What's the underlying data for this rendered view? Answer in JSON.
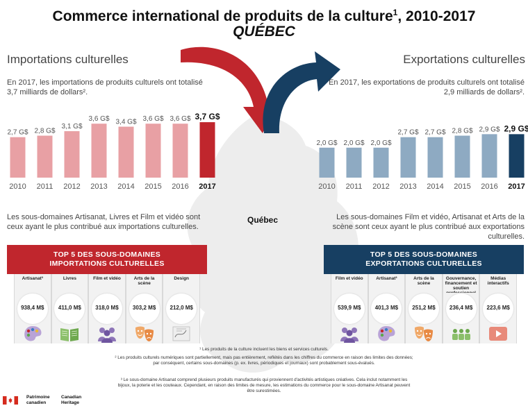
{
  "title": "Commerce international de produits de la culture",
  "title_sup": "1",
  "title_years": ", 2010-2017",
  "subtitle": "QUÉBEC",
  "imports": {
    "heading": "Importations culturelles",
    "intro": "En 2017, les importations de produits culturels ont totalisé 3,7 milliards de dollars².",
    "summary": "Les sous-domaines Artisanat, Livres et Film et vidéo sont ceux ayant le plus contribué aux importations culturelles.",
    "top5_title_line1": "TOP 5 DES SOUS-DOMAINES",
    "top5_title_line2": "IMPORTATIONS CULTURELLES",
    "top5": [
      {
        "label": "Artisanat³",
        "value": "938,4 M$",
        "icon": "palette-icon"
      },
      {
        "label": "Livres",
        "value": "411,0 M$",
        "icon": "book-icon"
      },
      {
        "label": "Film et vidéo",
        "value": "318,0 M$",
        "icon": "audience-icon"
      },
      {
        "label": "Arts de la scène",
        "value": "303,2 M$",
        "icon": "theatre-masks-icon"
      },
      {
        "label": "Design",
        "value": "212,0 M$",
        "icon": "design-sketch-icon"
      }
    ]
  },
  "exports": {
    "heading": "Exportations culturelles",
    "intro": "En 2017, les exportations de produits culturels ont totalisé 2,9 milliards de dollars².",
    "summary": "Les sous-domaines Film et vidéo, Artisanat et Arts de la scène sont ceux ayant le plus contribué aux exportations culturelles.",
    "top5_title_line1": "TOP 5 DES SOUS-DOMAINES",
    "top5_title_line2": "EXPORTATIONS CULTURELLES",
    "top5": [
      {
        "label": "Film et vidéo",
        "value": "539,9 M$",
        "icon": "audience-icon"
      },
      {
        "label": "Artisanat³",
        "value": "401,3 M$",
        "icon": "palette-icon"
      },
      {
        "label": "Arts de la scène",
        "value": "251,2 M$",
        "icon": "theatre-masks-icon"
      },
      {
        "label": "Gouvernance, financement et soutien professionnel",
        "value": "236,4 M$",
        "icon": "group-icon"
      },
      {
        "label": "Médias interactifs",
        "value": "223,6 M$",
        "icon": "play-icon"
      }
    ]
  },
  "map_label": "Québec",
  "notes": {
    "n1": "¹ Les produits de la culture incluent les biens et services culturels.",
    "n2": "² Les produits culturels numériques sont partiellement, mais pas entièrement, reflétés dans les chiffres du commerce en raison des limites des données; par conséquent, certains sous-domaines (p. ex. livres, périodiques et journaux) sont probablement sous-évalués.",
    "n3": "³ Le sous-domaine Artisanat comprend plusieurs produits manufacturés qui proviennent d'activités artistiques créatives. Cela inclut notamment les bijoux, la poterie et les couteaux. Cependant, en raison des limites de mesure, les estimations du commerce pour le sous-domaine Artisanat peuvent être surestimées."
  },
  "footer": {
    "fr": "Patrimoine canadien",
    "en": "Canadian Heritage"
  },
  "colors": {
    "import_accent": "#c0262d",
    "export_accent": "#173f62",
    "import_bar": "#e8a0a4",
    "export_bar": "#8eaac2"
  },
  "chart_data": [
    {
      "type": "bar",
      "title": "Importations culturelles",
      "categories": [
        "2010",
        "2011",
        "2012",
        "2013",
        "2014",
        "2015",
        "2016",
        "2017"
      ],
      "values": [
        2.7,
        2.8,
        3.1,
        3.6,
        3.4,
        3.6,
        3.6,
        3.7
      ],
      "labels": [
        "2,7 G$",
        "2,8 G$",
        "3,1 G$",
        "3,6 G$",
        "3,4 G$",
        "3,6 G$",
        "3,6 G$",
        "3,7 G$"
      ],
      "ylim": [
        0,
        4
      ]
    },
    {
      "type": "bar",
      "title": "Exportations culturelles",
      "categories": [
        "2010",
        "2011",
        "2012",
        "2013",
        "2014",
        "2015",
        "2016",
        "2017"
      ],
      "values": [
        2.0,
        2.0,
        2.0,
        2.7,
        2.7,
        2.8,
        2.9,
        2.9
      ],
      "labels": [
        "2,0 G$",
        "2,0 G$",
        "2,0 G$",
        "2,7 G$",
        "2,7 G$",
        "2,8 G$",
        "2,9 G$",
        "2,9 G$"
      ],
      "ylim": [
        0,
        4
      ]
    }
  ]
}
